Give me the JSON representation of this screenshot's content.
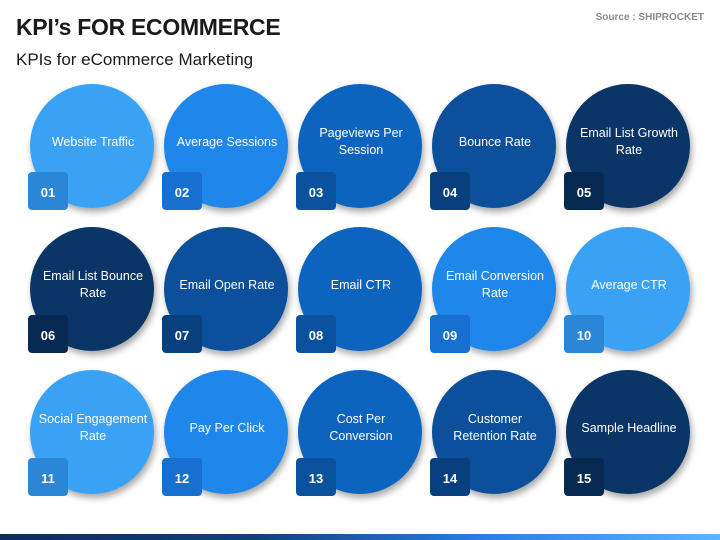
{
  "header": {
    "title": "KPI’s FOR ECOMMERCE",
    "subtitle": "KPIs for eCommerce Marketing",
    "source": "Source : SHIPROCKET"
  },
  "kpis": [
    {
      "number": "01",
      "label": "Website Traffic",
      "color": "#3aa2f5",
      "tile_color": "#2a86d6"
    },
    {
      "number": "02",
      "label": "Average Sessions",
      "color": "#1f86ea",
      "tile_color": "#176fcf"
    },
    {
      "number": "03",
      "label": "Pageviews Per Session",
      "color": "#0d64bf",
      "tile_color": "#0a529e"
    },
    {
      "number": "04",
      "label": "Bounce Rate",
      "color": "#0c4f9a",
      "tile_color": "#08407d"
    },
    {
      "number": "05",
      "label": "Email List Growth Rate",
      "color": "#0b3567",
      "tile_color": "#072a52"
    },
    {
      "number": "06",
      "label": "Email List Bounce Rate",
      "color": "#0b3567",
      "tile_color": "#072a52"
    },
    {
      "number": "07",
      "label": "Email Open Rate",
      "color": "#0c4f9a",
      "tile_color": "#08407d"
    },
    {
      "number": "08",
      "label": "Email CTR",
      "color": "#0d64bf",
      "tile_color": "#0a529e"
    },
    {
      "number": "09",
      "label": "Email Conversion Rate",
      "color": "#1f86ea",
      "tile_color": "#176fcf"
    },
    {
      "number": "10",
      "label": "Average CTR",
      "color": "#3aa2f5",
      "tile_color": "#2a86d6"
    },
    {
      "number": "11",
      "label": "Social Engagement Rate",
      "color": "#3aa2f5",
      "tile_color": "#2a86d6"
    },
    {
      "number": "12",
      "label": "Pay Per Click",
      "color": "#1f86ea",
      "tile_color": "#176fcf"
    },
    {
      "number": "13",
      "label": "Cost Per Conversion",
      "color": "#0d64bf",
      "tile_color": "#0a529e"
    },
    {
      "number": "14",
      "label": "Customer Retention Rate",
      "color": "#0c4f9a",
      "tile_color": "#08407d"
    },
    {
      "number": "15",
      "label": "Sample Headline",
      "color": "#0b3567",
      "tile_color": "#072a52"
    }
  ]
}
